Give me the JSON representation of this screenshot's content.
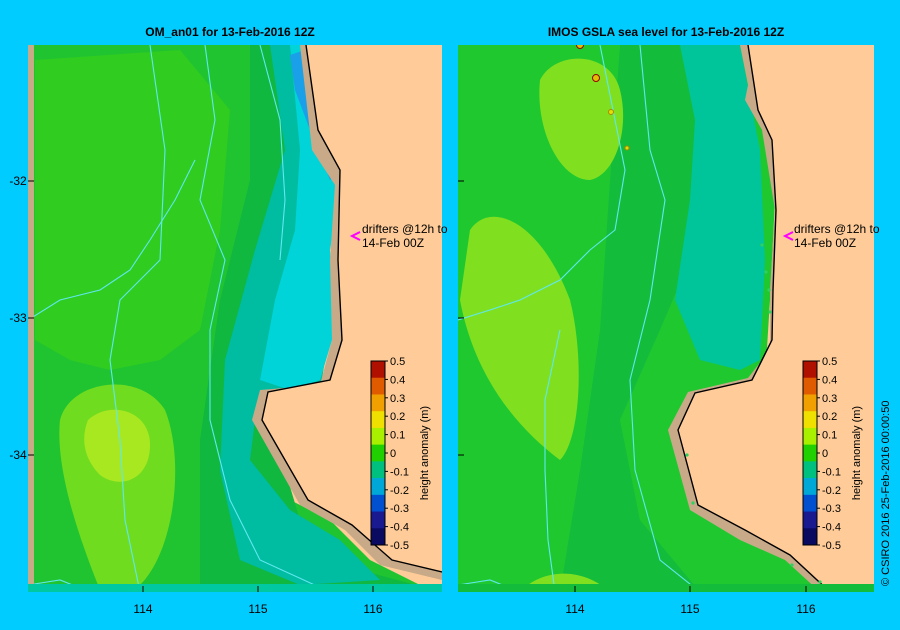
{
  "panels": [
    {
      "title": "OM_an01  for 13-Feb-2016 12Z",
      "drifter_label_1": "drifters @12h to",
      "drifter_label_2": "14-Feb 00Z"
    },
    {
      "title": "IMOS GSLA sea level  for 13-Feb-2016 12Z",
      "drifter_label_1": "drifters @12h to",
      "drifter_label_2": "14-Feb 00Z"
    }
  ],
  "axes": {
    "lat_ticks": [
      "-32",
      "-33",
      "-34"
    ],
    "lon_ticks": [
      "114",
      "115",
      "116"
    ]
  },
  "colorbar": {
    "label": "height anomaly (m)",
    "ticks": [
      "0.5",
      "0.4",
      "0.3",
      "0.2",
      "0.1",
      "0",
      "-0.1",
      "-0.2",
      "-0.3",
      "-0.4",
      "-0.5"
    ],
    "colors": [
      "#b01000",
      "#e05a00",
      "#f0a000",
      "#f0e000",
      "#a8f000",
      "#20d000",
      "#00c080",
      "#00a8d8",
      "#0050d0",
      "#1a1a90",
      "#0a0a60"
    ]
  },
  "credit": "© CSIRO 2016   25-Feb-2016 00:00:50",
  "colors": {
    "background": "#00ccff",
    "land": "#ffcc99",
    "shelf": "#c8aa88",
    "drifter_arrow": "#ff00ff"
  }
}
